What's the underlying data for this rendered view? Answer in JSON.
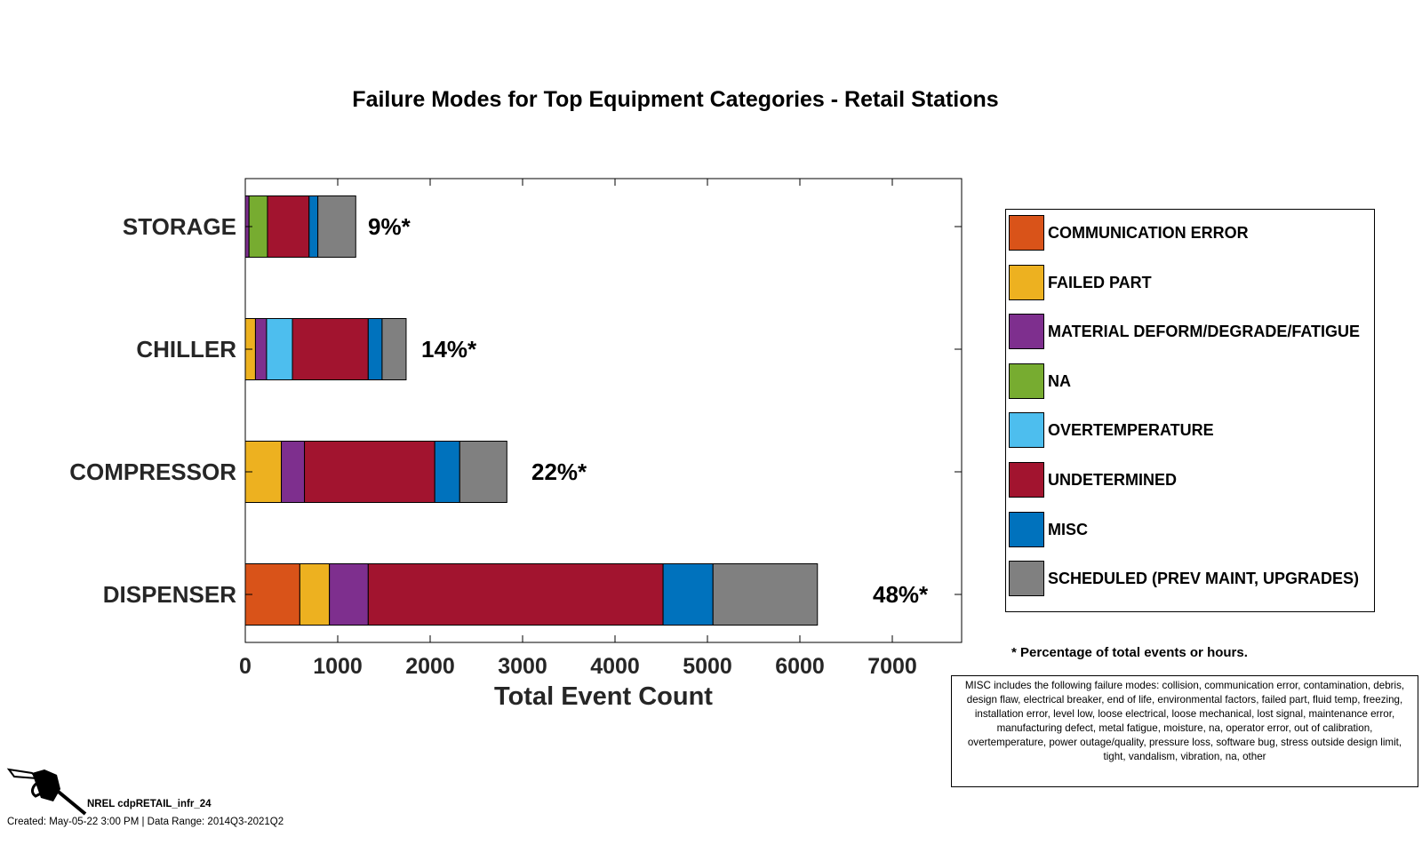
{
  "chart_data": {
    "type": "bar",
    "orientation": "horizontal",
    "stacked": true,
    "title": "Failure Modes for Top Equipment Categories - Retail Stations",
    "xlabel": "Total Event Count",
    "ylabel": "",
    "xlim": [
      0,
      7750
    ],
    "xticks": [
      0,
      1000,
      2000,
      3000,
      4000,
      5000,
      6000,
      7000
    ],
    "xtick_labels": [
      "0",
      "1000",
      "2000",
      "3000",
      "4000",
      "5000",
      "6000",
      "7000"
    ],
    "grid": false,
    "legend_position": "right",
    "categories": [
      "STORAGE",
      "CHILLER",
      "COMPRESSOR",
      "DISPENSER"
    ],
    "bar_labels": [
      "9%*",
      "14%*",
      "22%*",
      "48%*"
    ],
    "series": [
      {
        "name": "COMMUNICATION ERROR",
        "color": "#D95319",
        "values": [
          0,
          0,
          0,
          590
        ]
      },
      {
        "name": "FAILED PART",
        "color": "#EDB120",
        "values": [
          0,
          110,
          390,
          320
        ]
      },
      {
        "name": "MATERIAL DEFORM/DEGRADE/FATIGUE",
        "color": "#7E2F8E",
        "values": [
          40,
          120,
          250,
          420
        ]
      },
      {
        "name": "NA",
        "color": "#77AC30",
        "values": [
          200,
          0,
          0,
          0
        ]
      },
      {
        "name": "OVERTEMPERATURE",
        "color": "#4DBEEE",
        "values": [
          0,
          280,
          0,
          0
        ]
      },
      {
        "name": "UNDETERMINED",
        "color": "#A2142F",
        "values": [
          450,
          820,
          1410,
          3190
        ]
      },
      {
        "name": "MISC",
        "color": "#0072BD",
        "values": [
          95,
          150,
          270,
          540
        ]
      },
      {
        "name": "SCHEDULED (PREV MAINT, UPGRADES)",
        "color": "#808080",
        "values": [
          410,
          260,
          510,
          1130
        ]
      }
    ]
  },
  "footnote": "* Percentage of total events or hours.",
  "misc_note": "MISC includes the following failure modes: collision, communication error, contamination, debris, design flaw, electrical breaker, end of life, environmental factors, failed part, fluid temp, freezing, installation error, level low, loose electrical, loose mechanical, lost signal, maintenance error, manufacturing defect, metal fatigue, moisture, na, operator error, out of calibration, overtemperature, power outage/quality, pressure loss, software bug, stress outside design limit, tight, vandalism, vibration, na, other",
  "credit": "NREL cdpRETAIL_infr_24",
  "created": "Created: May-05-22  3:00 PM | Data Range: 2014Q3-2021Q2",
  "logo_icon": "fuel-nozzle-icon"
}
